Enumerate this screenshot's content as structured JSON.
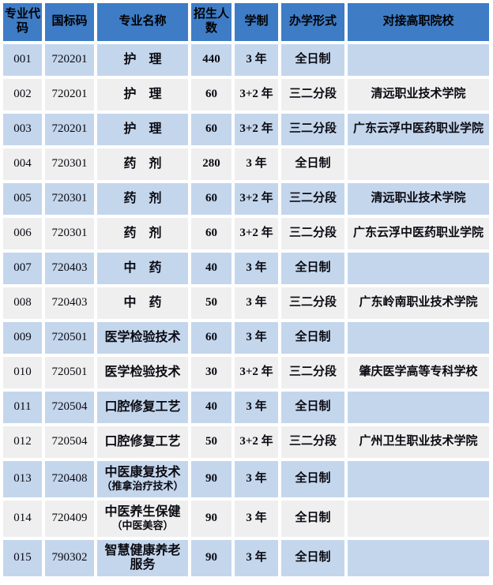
{
  "table": {
    "columns": [
      "专业代码",
      "国标码",
      "专业名称",
      "招生人数",
      "学制",
      "办学形式",
      "对接高职院校"
    ],
    "rows": [
      {
        "code": "001",
        "std_code": "720201",
        "name": "护　理",
        "enroll": "440",
        "duration": "3 年",
        "form": "全日制",
        "college": ""
      },
      {
        "code": "002",
        "std_code": "720201",
        "name": "护　理",
        "enroll": "60",
        "duration": "3+2 年",
        "form": "三二分段",
        "college": "清远职业技术学院"
      },
      {
        "code": "003",
        "std_code": "720201",
        "name": "护　理",
        "enroll": "60",
        "duration": "3+2 年",
        "form": "三二分段",
        "college": "广东云浮中医药职业学院"
      },
      {
        "code": "004",
        "std_code": "720301",
        "name": "药　剂",
        "enroll": "280",
        "duration": "3 年",
        "form": "全日制",
        "college": ""
      },
      {
        "code": "005",
        "std_code": "720301",
        "name": "药　剂",
        "enroll": "60",
        "duration": "3+2 年",
        "form": "三二分段",
        "college": "清远职业技术学院"
      },
      {
        "code": "006",
        "std_code": "720301",
        "name": "药　剂",
        "enroll": "60",
        "duration": "3+2 年",
        "form": "三二分段",
        "college": "广东云浮中医药职业学院"
      },
      {
        "code": "007",
        "std_code": "720403",
        "name": "中　药",
        "enroll": "40",
        "duration": "3 年",
        "form": "全日制",
        "college": ""
      },
      {
        "code": "008",
        "std_code": "720403",
        "name": "中　药",
        "enroll": "50",
        "duration": "3 年",
        "form": "三二分段",
        "college": "广东岭南职业技术学院"
      },
      {
        "code": "009",
        "std_code": "720501",
        "name": "医学检验技术",
        "enroll": "60",
        "duration": "3 年",
        "form": "全日制",
        "college": ""
      },
      {
        "code": "010",
        "std_code": "720501",
        "name": "医学检验技术",
        "enroll": "30",
        "duration": "3+2 年",
        "form": "三二分段",
        "college": "肇庆医学高等专科学校"
      },
      {
        "code": "011",
        "std_code": "720504",
        "name": "口腔修复工艺",
        "enroll": "40",
        "duration": "3 年",
        "form": "全日制",
        "college": ""
      },
      {
        "code": "012",
        "std_code": "720504",
        "name": "口腔修复工艺",
        "enroll": "50",
        "duration": "3+2 年",
        "form": "三二分段",
        "college": "广州卫生职业技术学院"
      },
      {
        "code": "013",
        "std_code": "720408",
        "name": "中医康复技术",
        "note": "（推拿治疗技术）",
        "enroll": "90",
        "duration": "3 年",
        "form": "全日制",
        "college": ""
      },
      {
        "code": "014",
        "std_code": "720409",
        "name": "中医养生保健",
        "note": "（中医美容）",
        "enroll": "90",
        "duration": "3 年",
        "form": "全日制",
        "college": ""
      },
      {
        "code": "015",
        "std_code": "790302",
        "name": "智慧健康养老",
        "name2": "服务",
        "enroll": "90",
        "duration": "3 年",
        "form": "全日制",
        "college": ""
      }
    ]
  },
  "colors": {
    "header_bg": "#3E7CC6",
    "row_blue": "#C4D6EC",
    "row_gray": "#EFEFEF",
    "text": "#0A0A12"
  }
}
